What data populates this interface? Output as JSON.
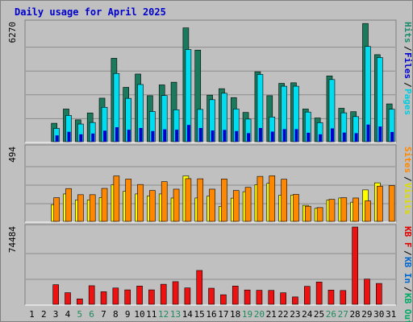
{
  "chart_data": [
    {
      "type": "bar",
      "title": "Daily usage for April 2025",
      "ymax_label": "6270",
      "ylim": [
        0,
        6270
      ],
      "grid": true,
      "categories": [
        "1",
        "2",
        "3",
        "4",
        "5",
        "6",
        "7",
        "8",
        "9",
        "10",
        "11",
        "12",
        "13",
        "14",
        "15",
        "16",
        "17",
        "18",
        "19",
        "20",
        "21",
        "22",
        "23",
        "24",
        "25",
        "26",
        "27",
        "28",
        "29",
        "30",
        "31"
      ],
      "weekend_days": [
        "5",
        "6",
        "12",
        "13",
        "19",
        "20",
        "26",
        "27"
      ],
      "legend": [
        {
          "text": "Pages",
          "color": "#00ccdd"
        },
        {
          "text": "Files",
          "color": "#0000cc"
        },
        {
          "text": "Hits",
          "color": "#1a8a6a"
        }
      ],
      "series": [
        {
          "name": "Hits",
          "color": "#1a7a5e",
          "values": [
            0,
            0,
            970,
            1720,
            1150,
            1510,
            2290,
            4390,
            2860,
            3560,
            2420,
            2990,
            3130,
            5990,
            4820,
            2450,
            2790,
            2320,
            1540,
            3680,
            2420,
            3070,
            3100,
            1720,
            1250,
            3460,
            1760,
            1580,
            6220,
            4580,
            1990
          ]
        },
        {
          "name": "Pages",
          "color": "#00ddf0",
          "values": [
            0,
            0,
            700,
            1380,
            930,
            1010,
            1810,
            3590,
            2280,
            3010,
            1590,
            2430,
            1680,
            4850,
            1700,
            2210,
            2550,
            1720,
            1190,
            3540,
            1300,
            2920,
            2920,
            1560,
            1000,
            3270,
            1520,
            1320,
            5010,
            4430,
            1710
          ]
        },
        {
          "name": "Files",
          "color": "#0000cc",
          "values": [
            0,
            0,
            330,
            520,
            390,
            430,
            580,
            760,
            630,
            720,
            560,
            650,
            630,
            880,
            720,
            590,
            620,
            560,
            450,
            720,
            530,
            660,
            660,
            470,
            390,
            700,
            480,
            450,
            900,
            800,
            510
          ]
        }
      ]
    },
    {
      "type": "bar",
      "ymax_label": "494",
      "ylim": [
        0,
        494
      ],
      "grid": true,
      "legend": [
        {
          "text": "Visits",
          "color": "#dddd00"
        },
        {
          "text": "Sites",
          "color": "#ff8800"
        }
      ],
      "series": [
        {
          "name": "Visits",
          "color": "#ffff00",
          "values": [
            0,
            0,
            112,
            183,
            143,
            143,
            159,
            244,
            201,
            183,
            170,
            183,
            156,
            303,
            156,
            169,
            100,
            155,
            198,
            245,
            254,
            175,
            176,
            107,
            87,
            143,
            156,
            128,
            210,
            257,
            0
          ]
        },
        {
          "name": "Sites",
          "color": "#ff8800",
          "values": [
            0,
            0,
            158,
            219,
            178,
            178,
            220,
            303,
            282,
            246,
            206,
            265,
            215,
            285,
            284,
            215,
            283,
            206,
            227,
            300,
            304,
            281,
            180,
            101,
            92,
            147,
            158,
            156,
            137,
            235,
            239
          ]
        }
      ]
    },
    {
      "type": "bar",
      "ymax_label": "74484",
      "ylim": [
        0,
        74484
      ],
      "grid": true,
      "legend": [
        {
          "text": "KB F",
          "color": "#dd0000"
        },
        {
          "text": "KB In",
          "color": "#0066cc"
        },
        {
          "text": "KB Out",
          "color": "#00aa66"
        }
      ],
      "series": [
        {
          "name": "KB F",
          "color": "#ee1111",
          "values": [
            0,
            0,
            18900,
            11200,
            5200,
            17900,
            12100,
            15700,
            13900,
            17600,
            13900,
            19300,
            21800,
            15800,
            32600,
            15500,
            9200,
            17600,
            13800,
            13500,
            13400,
            11100,
            7100,
            17300,
            21500,
            13700,
            13300,
            74484,
            24300,
            20100,
            0
          ]
        }
      ]
    }
  ]
}
